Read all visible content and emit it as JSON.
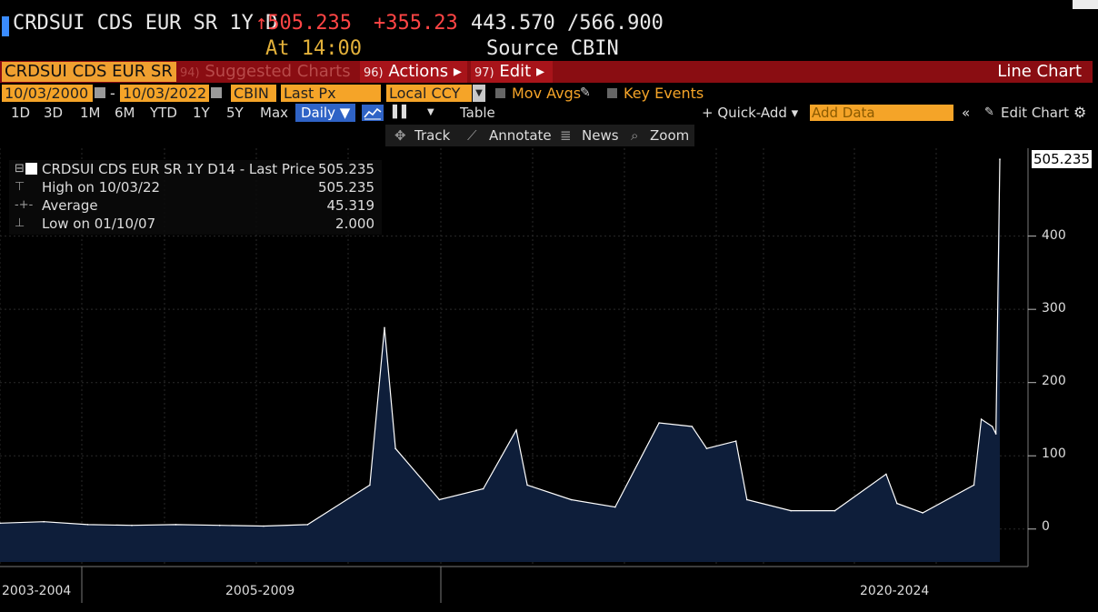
{
  "header": {
    "security": "CRDSUI CDS EUR SR 1Y D",
    "last_price": "↑505.235",
    "change": "+355.230",
    "range": "443.570 /566.900",
    "at_time": "At 14:00",
    "source": "Source CBIN"
  },
  "menu_bar": {
    "ticker": "CRDSUI CDS EUR SR",
    "suggested_num": "94)",
    "suggested": "Suggested Charts",
    "actions_num": "96)",
    "actions": "Actions ▸",
    "edit_num": "97)",
    "edit": "Edit ▸",
    "chart_type": "Line Chart"
  },
  "params": {
    "start_date": "10/03/2000",
    "dash": "-",
    "end_date": "10/03/2022",
    "source": "CBIN",
    "field": "Last Px",
    "currency": "Local CCY",
    "mov_avgs": "Mov Avgs",
    "key_events": "Key Events"
  },
  "time_row": {
    "periods": [
      "1D",
      "3D",
      "1M",
      "6M",
      "YTD",
      "1Y",
      "5Y",
      "Max"
    ],
    "frequency": "Daily ▼",
    "table": "Table",
    "quick_add": "+ Quick-Add ▾",
    "add_data_placeholder": "Add Data",
    "edit_chart": "Edit Chart"
  },
  "tools": {
    "track": "Track",
    "annotate": "Annotate",
    "news": "News",
    "zoom": "Zoom"
  },
  "legend": {
    "series": "CRDSUI CDS EUR SR 1Y D14 - Last Price",
    "series_value": "505.235",
    "high_label": "High on 10/03/22",
    "high_value": "505.235",
    "avg_label": "Average",
    "avg_value": "45.319",
    "low_label": "Low on 01/10/07",
    "low_value": "2.000"
  },
  "colors": {
    "area_fill": "#0e1e3a",
    "line": "#ffffff",
    "accent_orange": "#f5a428",
    "menu_red": "#8a0d12",
    "price_red": "#ff4545"
  },
  "chart_data": {
    "type": "area",
    "ylim": [
      -45,
      520
    ],
    "yticks": [
      0,
      100,
      200,
      300,
      400
    ],
    "last_value_label": "505.235",
    "x_period_labels": [
      "2003-2004",
      "2005-2009",
      "2020-2024"
    ],
    "x": [
      "2000",
      "2001",
      "2002",
      "2003",
      "2004",
      "2005",
      "2006",
      "2007",
      "2008-06",
      "2008-10",
      "2009",
      "2010",
      "2011",
      "2011-10",
      "2012",
      "2013",
      "2014",
      "2015",
      "2015-10",
      "2016-02",
      "2016-10",
      "2017",
      "2018",
      "2019",
      "2020-03",
      "2020-06",
      "2021",
      "2022-03",
      "2022-05",
      "2022-08",
      "2022-09",
      "2022-10-03"
    ],
    "values": [
      8,
      10,
      6,
      5,
      6,
      5,
      4,
      6,
      60,
      275,
      110,
      40,
      55,
      135,
      60,
      40,
      30,
      145,
      140,
      110,
      120,
      40,
      25,
      25,
      75,
      35,
      22,
      60,
      150,
      140,
      130,
      505
    ]
  },
  "x_labels": {
    "a": "2003-2004",
    "b": "2005-2009",
    "c": "2020-2024"
  },
  "y_labels": {
    "y400": "400",
    "y300": "300",
    "y200": "200",
    "y100": "100",
    "y0": "0"
  }
}
